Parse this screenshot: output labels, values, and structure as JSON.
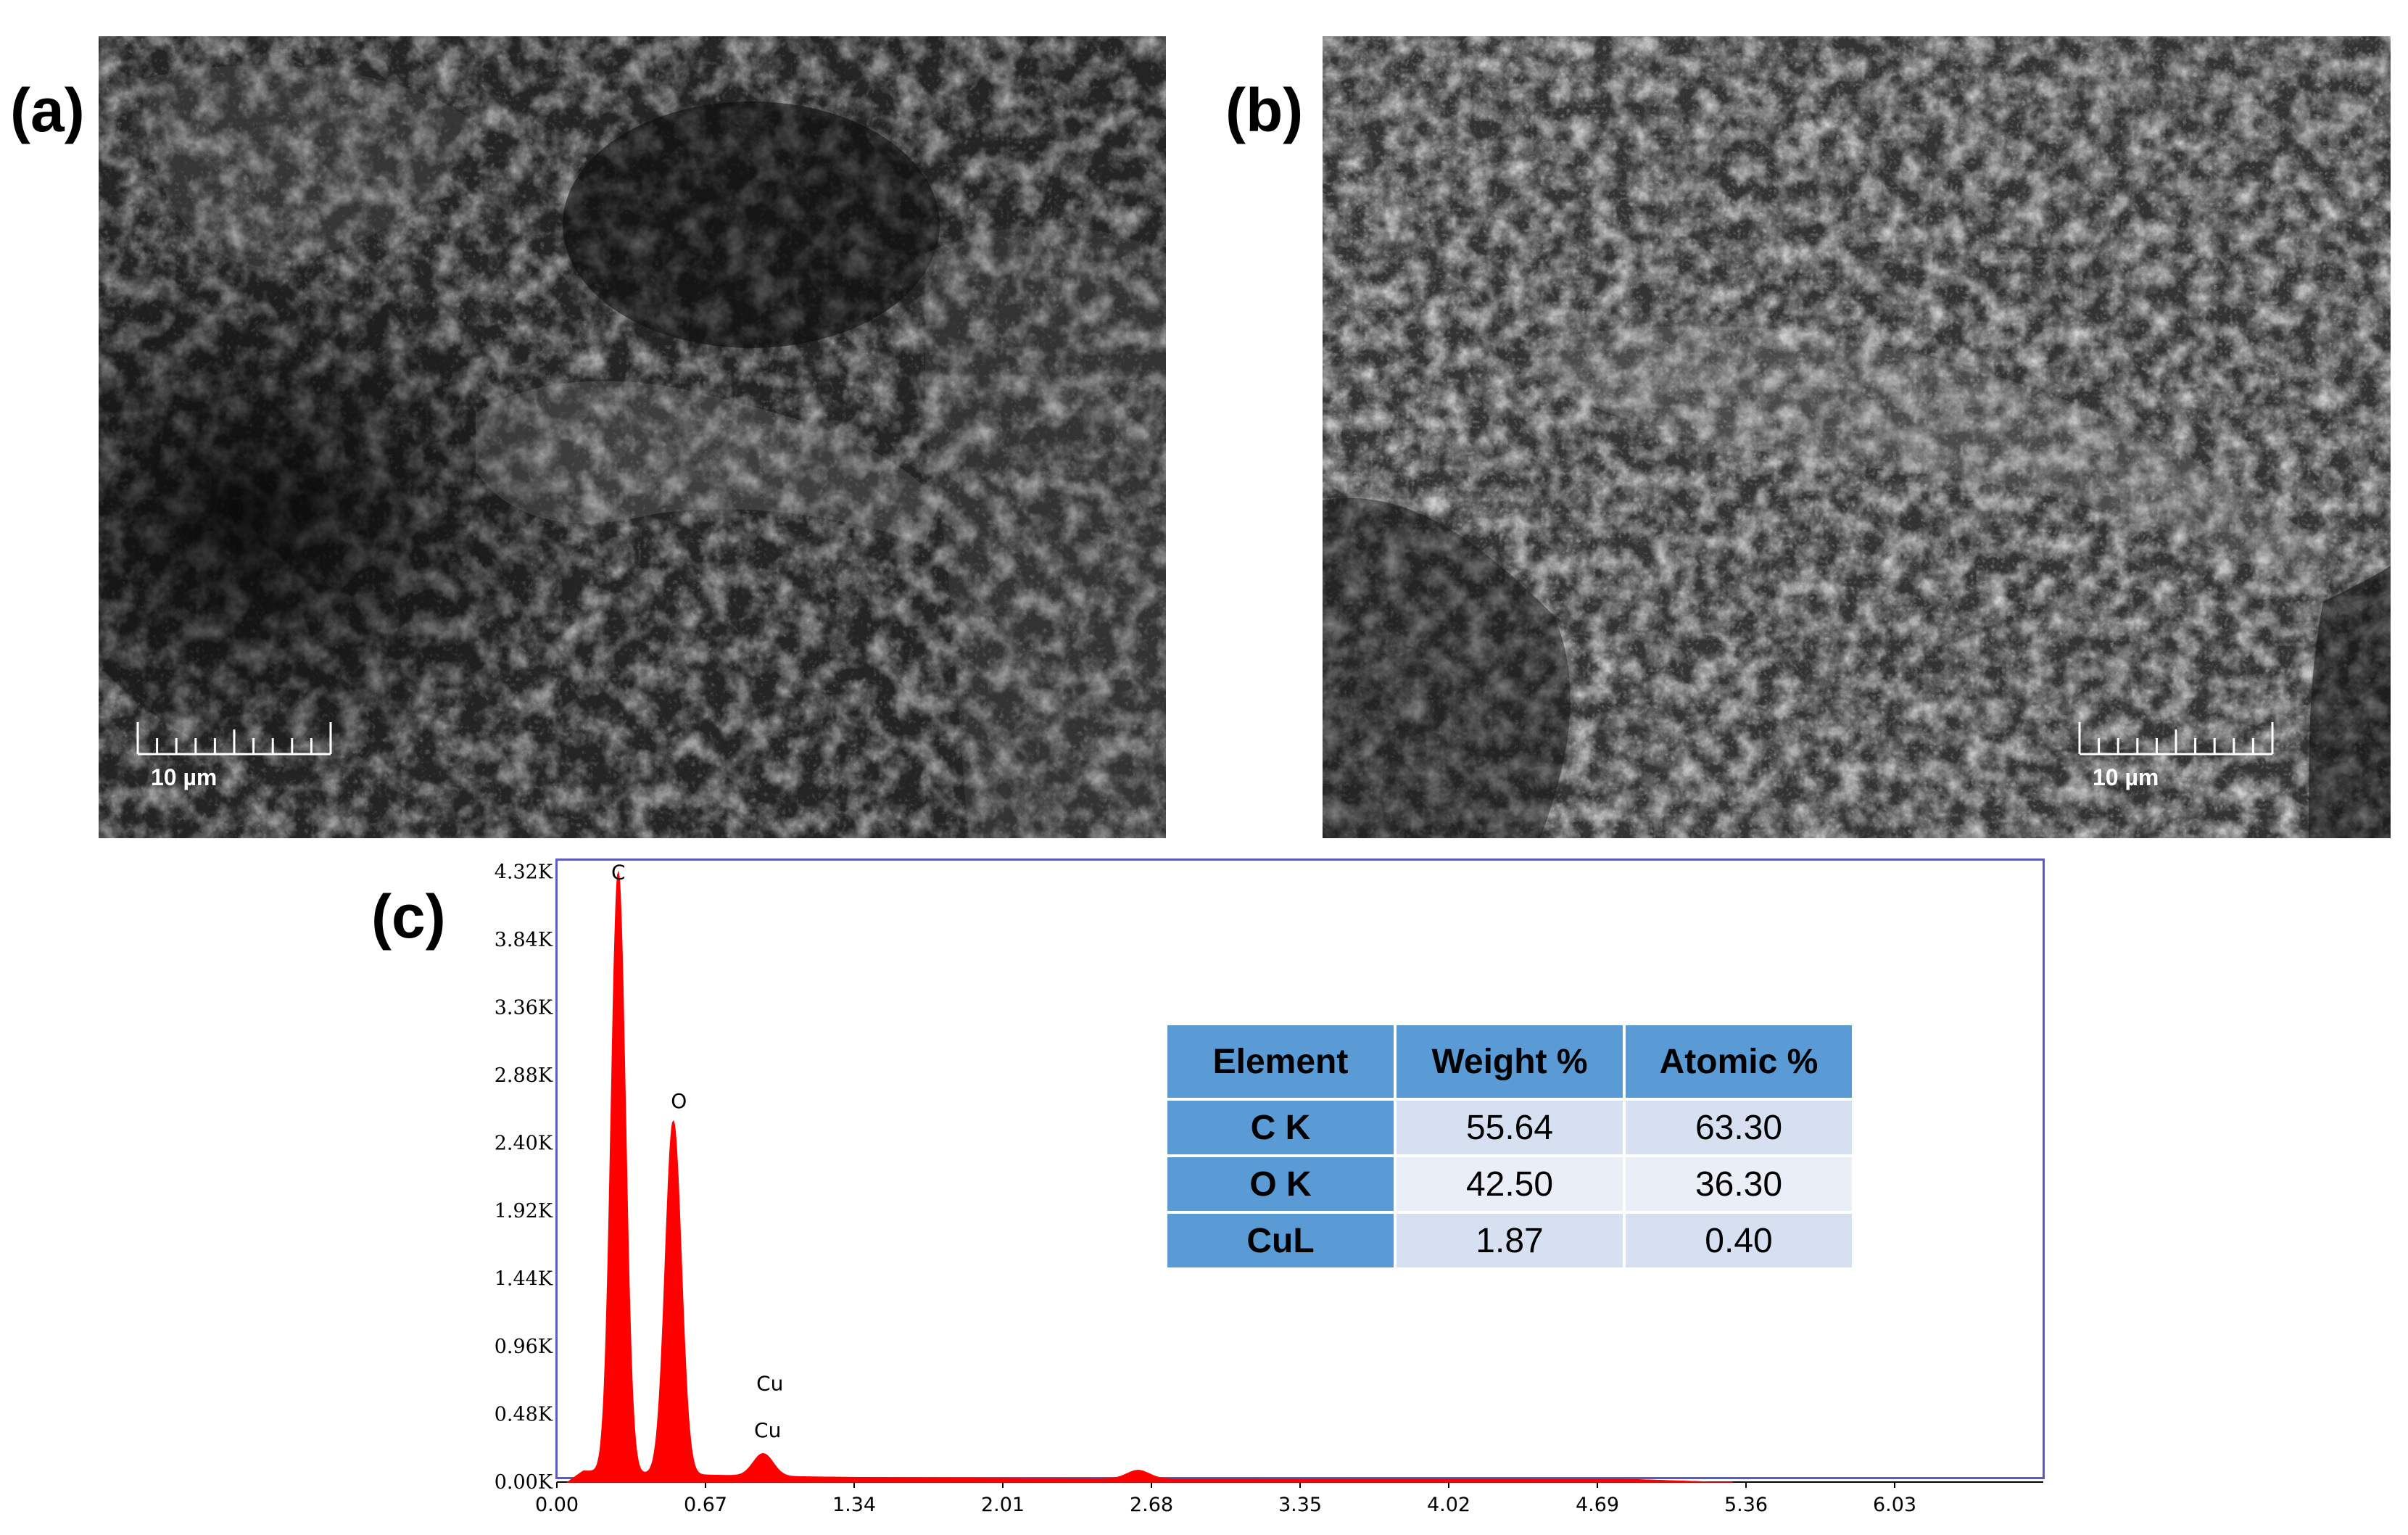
{
  "panels": {
    "a": {
      "label": "(a)",
      "scale_text": "10 µm"
    },
    "b": {
      "label": "(b)",
      "scale_text": "10 µm"
    },
    "c": {
      "label": "(c)"
    }
  },
  "table": {
    "headers": [
      "Element",
      "Weight %",
      "Atomic %"
    ],
    "rows": [
      {
        "element": "C K",
        "weight": "55.64",
        "atomic": "63.30"
      },
      {
        "element": "O K",
        "weight": "42.50",
        "atomic": "36.30"
      },
      {
        "element": "CuL",
        "weight": "1.87",
        "atomic": "0.40"
      }
    ]
  },
  "chart_data": {
    "type": "line",
    "title": "",
    "xlabel": "",
    "ylabel": "",
    "xlim": [
      0.0,
      6.7
    ],
    "ylim": [
      0,
      4.6
    ],
    "x_ticks": [
      "0.00",
      "0.67",
      "1.34",
      "2.01",
      "2.68",
      "3.35",
      "4.02",
      "4.69",
      "5.36",
      "6.03"
    ],
    "y_ticks": [
      "0.00K",
      "0.48K",
      "0.96K",
      "1.44K",
      "1.92K",
      "2.40K",
      "2.88K",
      "3.36K",
      "3.84K",
      "4.32K"
    ],
    "series": [
      {
        "color": "#ff0000",
        "peaks": [
          {
            "label": "C",
            "x": 0.277,
            "y": 4.25
          },
          {
            "label": "O",
            "x": 0.525,
            "y": 2.5
          },
          {
            "label": "Cu",
            "x": 0.93,
            "y": 0.16
          },
          {
            "label": "",
            "x": 2.62,
            "y": 0.06
          }
        ],
        "baseline": 0.02
      }
    ],
    "annotations": [
      {
        "text": "C",
        "x": 0.277,
        "y": 4.32
      },
      {
        "text": "O",
        "x": 0.55,
        "y": 2.7
      },
      {
        "text": "Cu",
        "x": 0.96,
        "y": 0.7
      },
      {
        "text": "Cu",
        "x": 0.95,
        "y": 0.37
      }
    ]
  }
}
